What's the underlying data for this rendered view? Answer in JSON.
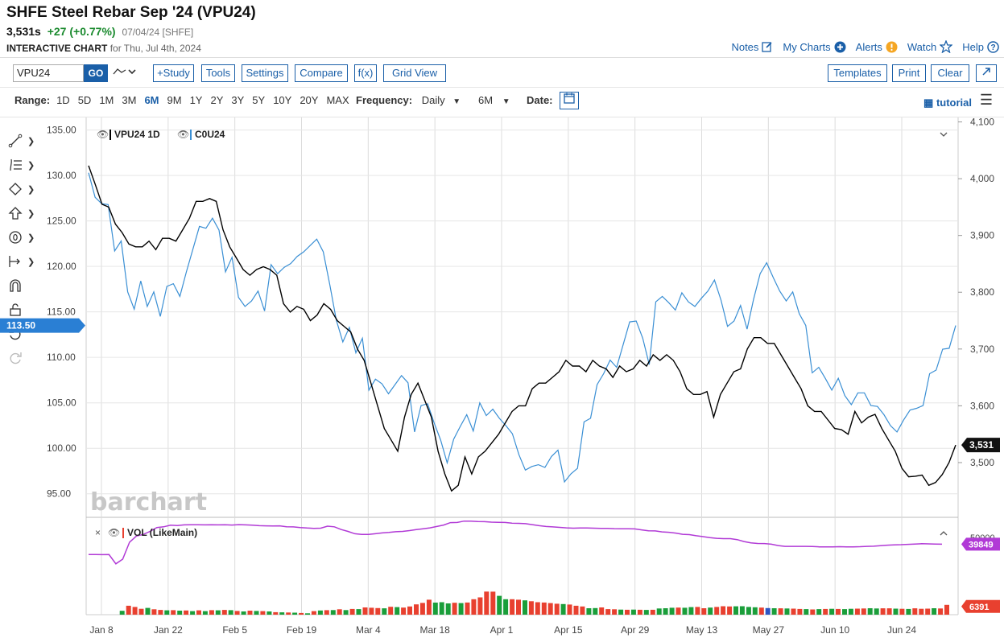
{
  "header": {
    "title": "SHFE Steel Rebar Sep '24 (VPU24)",
    "last": "3,531s",
    "change": "+27 (+0.77%)",
    "quote_date": "07/04/24 [SHFE]",
    "chart_label": "INTERACTIVE CHART",
    "chart_for": "for Thu, Jul 4th, 2024"
  },
  "top_links": {
    "notes": "Notes",
    "my_charts": "My Charts",
    "alerts": "Alerts",
    "watch": "Watch",
    "help": "Help"
  },
  "toolbar": {
    "symbol_value": "VPU24",
    "go": "GO",
    "study": "+Study",
    "tools": "Tools",
    "settings": "Settings",
    "compare": "Compare",
    "fx": "f(x)",
    "grid_view": "Grid View",
    "templates": "Templates",
    "print": "Print",
    "clear": "Clear"
  },
  "range": {
    "label": "Range:",
    "options": [
      "1D",
      "5D",
      "1M",
      "3M",
      "6M",
      "9M",
      "1Y",
      "2Y",
      "3Y",
      "5Y",
      "10Y",
      "20Y",
      "MAX"
    ],
    "active": "6M"
  },
  "frequency": {
    "label": "Frequency:",
    "value": "Daily"
  },
  "aggregation": "6M",
  "date_label": "Date:",
  "tutorial": "tutorial",
  "icons": [
    "line-tool-icon",
    "fib-tool-icon",
    "shape-tool-icon",
    "arrow-tool-icon",
    "text-tool-icon",
    "measure-tool-icon",
    "magnet-icon",
    "lock-icon",
    "undo-icon",
    "redo-icon"
  ],
  "colors": {
    "accent": "#1a5fa8",
    "vpu": "#000000",
    "cou": "#3a8fd4",
    "vol_line": "#b13ad6",
    "up": "#1a9e3a",
    "down": "#e8402f"
  },
  "chart_data": [
    {
      "type": "line",
      "legend": [
        "VPU24 1D",
        "C0U24"
      ],
      "x_ticks": [
        "Jan 8",
        "Jan 22",
        "Feb 5",
        "Feb 19",
        "Mar 4",
        "Mar 18",
        "Apr 1",
        "Apr 15",
        "Apr 29",
        "May 13",
        "May 27",
        "Jun 10",
        "Jun 24"
      ],
      "left_axis": {
        "ticks": [
          "135.00",
          "130.00",
          "125.00",
          "120.00",
          "115.00",
          "110.00",
          "105.00",
          "100.00",
          "95.00"
        ],
        "range": [
          92.5,
          136.2
        ]
      },
      "right_axis": {
        "ticks": [
          "4,100",
          "4,000",
          "3,900",
          "3,800",
          "3,700",
          "3,600",
          "3,500"
        ],
        "range": [
          3405,
          4105
        ]
      },
      "left_current": "113.50",
      "right_current": "3,531",
      "series": [
        {
          "name": "VPU24",
          "axis": "right",
          "values": [
            4023,
            3990,
            3955,
            3950,
            3920,
            3905,
            3885,
            3880,
            3880,
            3890,
            3875,
            3895,
            3895,
            3890,
            3910,
            3930,
            3960,
            3960,
            3965,
            3960,
            3910,
            3880,
            3860,
            3840,
            3830,
            3840,
            3845,
            3840,
            3830,
            3780,
            3765,
            3775,
            3770,
            3750,
            3760,
            3780,
            3770,
            3750,
            3740,
            3730,
            3700,
            3680,
            3640,
            3600,
            3560,
            3540,
            3520,
            3580,
            3620,
            3640,
            3610,
            3580,
            3520,
            3480,
            3450,
            3460,
            3510,
            3480,
            3510,
            3520,
            3535,
            3550,
            3570,
            3590,
            3600,
            3600,
            3630,
            3640,
            3640,
            3650,
            3660,
            3680,
            3670,
            3670,
            3660,
            3680,
            3670,
            3665,
            3650,
            3670,
            3660,
            3665,
            3680,
            3670,
            3690,
            3680,
            3690,
            3680,
            3660,
            3630,
            3620,
            3620,
            3625,
            3580,
            3620,
            3640,
            3660,
            3665,
            3700,
            3720,
            3720,
            3710,
            3710,
            3690,
            3670,
            3650,
            3630,
            3600,
            3590,
            3590,
            3575,
            3560,
            3558,
            3550,
            3590,
            3570,
            3580,
            3585,
            3560,
            3540,
            3520,
            3490,
            3475,
            3476,
            3478,
            3460,
            3465,
            3479,
            3500,
            3531
          ]
        },
        {
          "name": "C0U24",
          "axis": "left",
          "values": [
            130.3,
            127.6,
            126.9,
            126.8,
            121.7,
            122.8,
            117.2,
            115.3,
            118.4,
            115.6,
            117.2,
            114.5,
            117.8,
            118.1,
            116.7,
            119.4,
            121.9,
            124.4,
            124.2,
            125.3,
            124.0,
            119.4,
            121.0,
            116.6,
            115.6,
            116.2,
            117.3,
            115.1,
            120.2,
            119.2,
            119.9,
            120.3,
            121.1,
            121.6,
            122.3,
            123.0,
            121.6,
            118.0,
            114.1,
            111.7,
            113.3,
            110.5,
            112.1,
            106.4,
            107.6,
            107.1,
            106.0,
            107.0,
            108.0,
            107.2,
            101.8,
            104.7,
            104.9,
            102.8,
            100.9,
            98.4,
            101.0,
            102.4,
            103.7,
            101.9,
            105.0,
            103.6,
            104.3,
            103.3,
            102.5,
            101.6,
            99.3,
            97.6,
            98.0,
            98.2,
            97.9,
            99.1,
            99.8,
            96.3,
            97.2,
            97.8,
            102.9,
            103.3,
            107.0,
            108.2,
            109.7,
            108.9,
            111.4,
            113.9,
            114.0,
            112.1,
            109.2,
            116.1,
            116.7,
            116.0,
            115.2,
            117.1,
            116.1,
            115.6,
            116.5,
            117.3,
            118.5,
            116.3,
            113.4,
            114.0,
            115.7,
            113.1,
            116.4,
            119.2,
            120.4,
            118.8,
            117.3,
            116.2,
            117.2,
            114.8,
            113.5,
            108.3,
            108.9,
            107.7,
            106.4,
            107.7,
            105.8,
            104.8,
            106.1,
            106.1,
            104.7,
            104.6,
            103.7,
            102.5,
            101.8,
            103.1,
            104.2,
            104.4,
            104.7,
            108.2,
            108.6,
            110.9,
            111.0,
            113.5
          ]
        }
      ],
      "watermark": "barchart"
    },
    {
      "type": "bar",
      "legend": "VOL (LikeMain)",
      "y_range": [
        0,
        60000
      ],
      "y_ticks": [
        "50000"
      ],
      "current_line": "39849",
      "current_bar": "6391",
      "line_values": [
        39000,
        39000,
        38900,
        39000,
        33000,
        36000,
        47000,
        51000,
        52000,
        54000,
        56500,
        57000,
        58000,
        57800,
        58200,
        58300,
        58300,
        58200,
        58300,
        58200,
        58300,
        58100,
        58400,
        58200,
        58000,
        57700,
        57600,
        57500,
        57600,
        57000,
        56900,
        56500,
        56200,
        56000,
        56100,
        57400,
        57000,
        55200,
        54000,
        52500,
        52000,
        52000,
        52500,
        53000,
        53300,
        53800,
        54000,
        54500,
        55200,
        55700,
        56300,
        57200,
        58100,
        59700,
        59800,
        60700,
        60700,
        60400,
        60300,
        60000,
        59900,
        59800,
        59300,
        59200,
        59000,
        58400,
        57700,
        57200,
        56900,
        56600,
        56300,
        56100,
        56200,
        56200,
        56100,
        56000,
        56000,
        55800,
        55700,
        55700,
        55600,
        55000,
        54400,
        54300,
        53700,
        53400,
        52900,
        52100,
        51900,
        51200,
        50600,
        50000,
        49500,
        49300,
        49300,
        48700,
        47400,
        46600,
        46200,
        46100,
        45700,
        44800,
        44300,
        44300,
        44300,
        44300,
        44200,
        44000,
        44000,
        44000,
        44100,
        44000,
        44000,
        44100,
        44300,
        44400,
        44700,
        45100,
        45300,
        45400,
        45600,
        45800,
        46000,
        45900,
        45800,
        45700
      ],
      "bar_values": [
        0,
        0,
        0,
        0,
        0,
        2500,
        5800,
        5000,
        3800,
        4400,
        3500,
        3100,
        2800,
        2900,
        2600,
        2700,
        2300,
        2800,
        2300,
        2900,
        2800,
        3100,
        2900,
        2400,
        2100,
        2600,
        2400,
        2300,
        2100,
        1600,
        1500,
        1400,
        1300,
        1100,
        900,
        2300,
        2700,
        2900,
        3000,
        3500,
        3000,
        3700,
        3600,
        4700,
        4500,
        4300,
        4100,
        5100,
        4900,
        4600,
        5300,
        6700,
        7600,
        9700,
        7800,
        8100,
        7300,
        7700,
        7500,
        7900,
        10000,
        11200,
        15000,
        14900,
        12200,
        10000,
        10000,
        9700,
        9300,
        8700,
        8100,
        7900,
        7500,
        7100,
        6900,
        6600,
        5800,
        5300,
        4200,
        4300,
        4700,
        3600,
        3500,
        3300,
        3200,
        3300,
        3200,
        3100,
        3200,
        4000,
        4200,
        4500,
        4600,
        4500,
        4900,
        5000,
        4200,
        4600,
        5000,
        5500,
        5300,
        5400,
        5500,
        5000,
        4800,
        4600,
        4300,
        4200,
        4100,
        4000,
        3900,
        3700,
        3600,
        3400,
        3600,
        3700,
        3800,
        3700,
        3600,
        3800,
        3900,
        4000,
        4200,
        4000,
        4100,
        4100,
        3900,
        3800,
        3700,
        4100,
        3800,
        3900,
        4200,
        4000,
        6391
      ],
      "bar_colors": [
        "d",
        "d",
        "d",
        "d",
        "d",
        "u",
        "d",
        "d",
        "d",
        "u",
        "d",
        "d",
        "u",
        "d",
        "u",
        "d",
        "u",
        "d",
        "u",
        "d",
        "u",
        "d",
        "u",
        "d",
        "u",
        "d",
        "u",
        "d",
        "u",
        "d",
        "u",
        "d",
        "u",
        "d",
        "u",
        "d",
        "u",
        "d",
        "u",
        "d",
        "u",
        "d",
        "u",
        "d",
        "d",
        "d",
        "u",
        "d",
        "u",
        "d",
        "d",
        "d",
        "d",
        "d",
        "u",
        "u",
        "u",
        "d",
        "u",
        "d",
        "d",
        "d",
        "d",
        "d",
        "u",
        "u",
        "d",
        "d",
        "u",
        "d",
        "d",
        "d",
        "d",
        "d",
        "u",
        "d",
        "d",
        "d",
        "u",
        "u",
        "d",
        "d",
        "d",
        "u",
        "d",
        "u",
        "d",
        "u",
        "d",
        "u",
        "u",
        "u",
        "d",
        "u",
        "u",
        "d",
        "d",
        "u",
        "d",
        "d",
        "d",
        "u",
        "u",
        "u",
        "u",
        "d",
        "b",
        "u",
        "d",
        "u",
        "d",
        "d",
        "u",
        "d",
        "u",
        "d",
        "u",
        "d",
        "u",
        "u",
        "d",
        "d",
        "u",
        "u",
        "d",
        "d",
        "u",
        "d",
        "u",
        "d",
        "d",
        "d",
        "u",
        "d",
        "d"
      ]
    }
  ]
}
